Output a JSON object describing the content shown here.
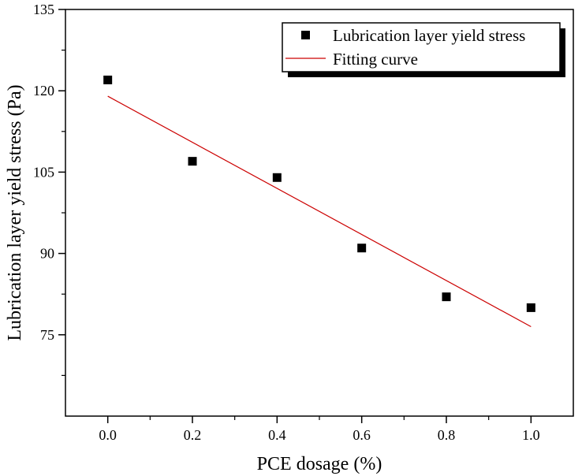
{
  "chart_data": {
    "type": "scatter",
    "title": "",
    "xlabel": "PCE dosage (%)",
    "ylabel": "Lubrication layer yield stress (Pa)",
    "xlim": [
      -0.1,
      1.1
    ],
    "ylim": [
      60,
      135
    ],
    "x_ticks": [
      0.0,
      0.2,
      0.4,
      0.6,
      0.8,
      1.0
    ],
    "x_tick_labels": [
      "0.0",
      "0.2",
      "0.4",
      "0.6",
      "0.8",
      "1.0"
    ],
    "y_ticks": [
      75,
      90,
      105,
      120,
      135
    ],
    "y_tick_labels": [
      "75",
      "90",
      "105",
      "120",
      "135"
    ],
    "grid": false,
    "legend_position": "top-right",
    "series": [
      {
        "name": "Lubrication layer yield stress",
        "kind": "scatter",
        "marker": "square",
        "color": "#000000",
        "x": [
          0.0,
          0.2,
          0.4,
          0.6,
          0.8,
          1.0
        ],
        "y": [
          122,
          107,
          104,
          91,
          82,
          80
        ]
      },
      {
        "name": "Fitting curve",
        "kind": "line",
        "color": "#cc0000",
        "x": [
          0.0,
          1.0
        ],
        "y": [
          119,
          76.5
        ]
      }
    ]
  }
}
